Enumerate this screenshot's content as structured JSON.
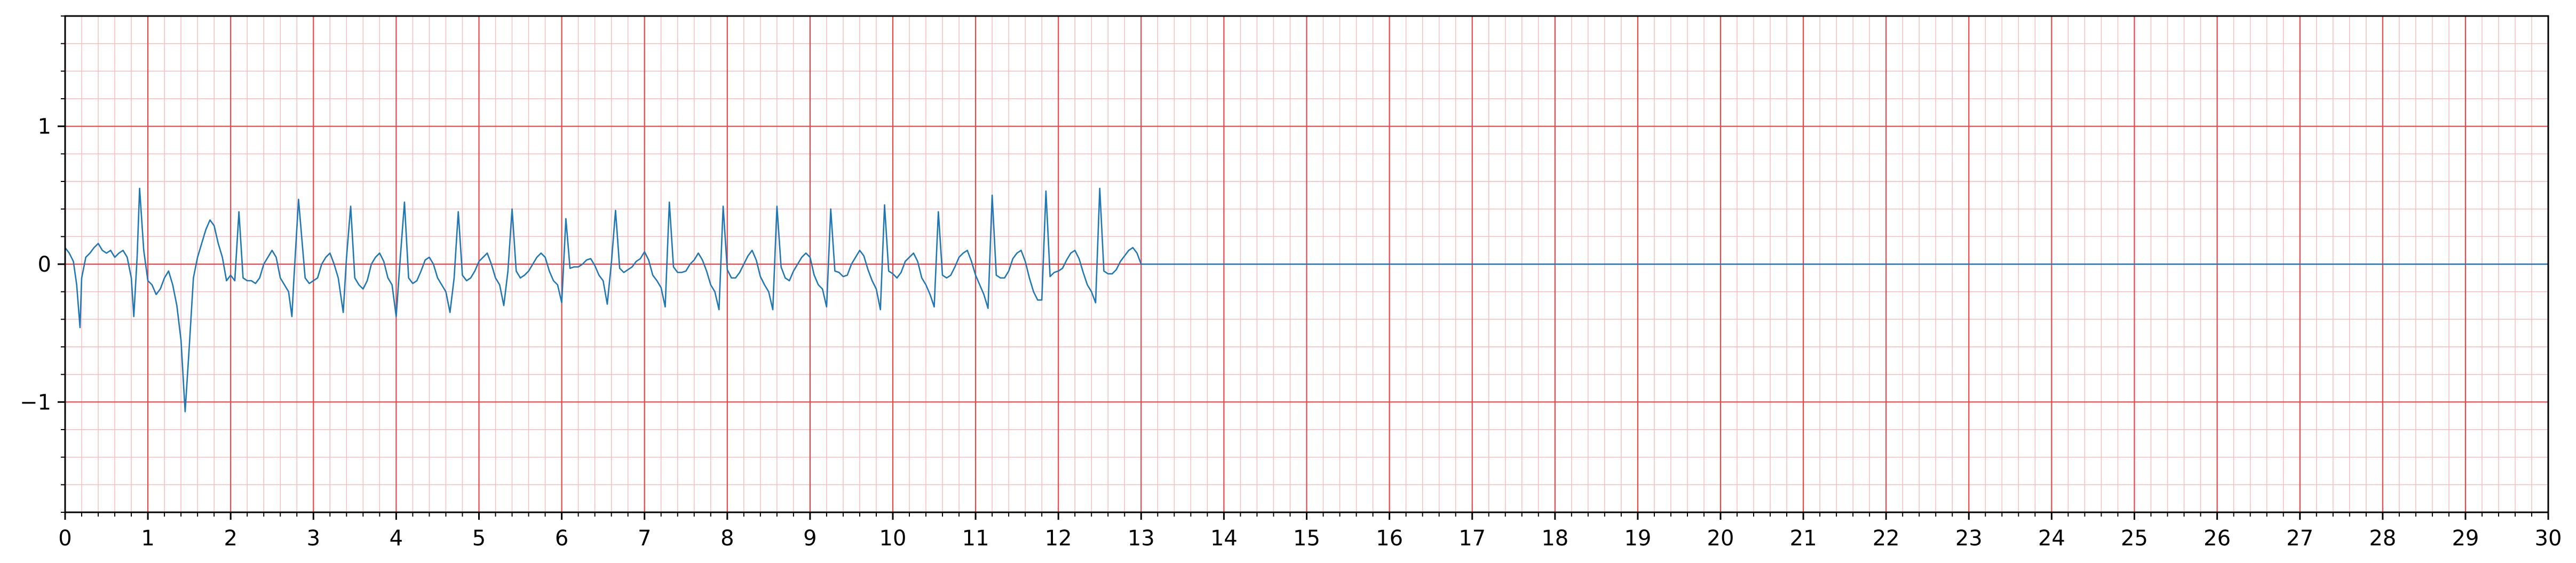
{
  "chart_data": {
    "type": "line",
    "title": "",
    "xlabel": "",
    "ylabel": "",
    "xlim": [
      0,
      30
    ],
    "ylim": [
      -1.8,
      1.8
    ],
    "x_ticks": [
      0,
      1,
      2,
      3,
      4,
      5,
      6,
      7,
      8,
      9,
      10,
      11,
      12,
      13,
      14,
      15,
      16,
      17,
      18,
      19,
      20,
      21,
      22,
      23,
      24,
      25,
      26,
      27,
      28,
      29,
      30
    ],
    "x_tick_labels": [
      "0",
      "1",
      "2",
      "3",
      "4",
      "5",
      "6",
      "7",
      "8",
      "9",
      "10",
      "11",
      "12",
      "13",
      "14",
      "15",
      "16",
      "17",
      "18",
      "19",
      "20",
      "21",
      "22",
      "23",
      "24",
      "25",
      "26",
      "27",
      "28",
      "29",
      "30"
    ],
    "y_ticks": [
      -1,
      0,
      1
    ],
    "y_tick_labels": [
      "−1",
      "0",
      "1"
    ],
    "x_minor_step": 0.2,
    "y_minor_step": 0.2,
    "grid": true,
    "colors": {
      "series": "#1f77b4",
      "major_grid": "#e8474a",
      "minor_grid": "#f7b9b9"
    },
    "series": [
      {
        "x": [
          0,
          0.05,
          0.1,
          0.14,
          0.18,
          0.2,
          0.25,
          0.3,
          0.35,
          0.4,
          0.45,
          0.5,
          0.55,
          0.6,
          0.65,
          0.7,
          0.75,
          0.8,
          0.83,
          0.87,
          0.9,
          0.95,
          1.0,
          1.05,
          1.1,
          1.15,
          1.2,
          1.25,
          1.3,
          1.35,
          1.4,
          1.45,
          1.5,
          1.55,
          1.6,
          1.65,
          1.7,
          1.75,
          1.8,
          1.85,
          1.9,
          1.95,
          2.0,
          2.05,
          2.1,
          2.15,
          2.2,
          2.25,
          2.3,
          2.35,
          2.4,
          2.45,
          2.5,
          2.55,
          2.6,
          2.65,
          2.7,
          2.74,
          2.76,
          2.82,
          2.9,
          2.95,
          3.0,
          3.05,
          3.1,
          3.15,
          3.2,
          3.25,
          3.3,
          3.36,
          3.4,
          3.45,
          3.5,
          3.55,
          3.6,
          3.65,
          3.7,
          3.75,
          3.8,
          3.85,
          3.9,
          3.95,
          4.0,
          4.05,
          4.1,
          4.15,
          4.2,
          4.25,
          4.3,
          4.35,
          4.4,
          4.45,
          4.5,
          4.55,
          4.6,
          4.65,
          4.7,
          4.75,
          4.8,
          4.85,
          4.9,
          4.95,
          5.0,
          5.05,
          5.1,
          5.15,
          5.2,
          5.25,
          5.3,
          5.35,
          5.4,
          5.45,
          5.5,
          5.55,
          5.6,
          5.65,
          5.7,
          5.75,
          5.8,
          5.85,
          5.9,
          5.95,
          6.0,
          6.05,
          6.1,
          6.15,
          6.2,
          6.25,
          6.3,
          6.35,
          6.4,
          6.45,
          6.5,
          6.55,
          6.6,
          6.65,
          6.7,
          6.75,
          6.8,
          6.85,
          6.9,
          6.95,
          7.0,
          7.05,
          7.1,
          7.15,
          7.2,
          7.25,
          7.3,
          7.35,
          7.4,
          7.45,
          7.5,
          7.55,
          7.6,
          7.65,
          7.7,
          7.75,
          7.8,
          7.85,
          7.9,
          7.95,
          8.0,
          8.05,
          8.1,
          8.15,
          8.2,
          8.25,
          8.3,
          8.35,
          8.4,
          8.45,
          8.5,
          8.55,
          8.6,
          8.65,
          8.7,
          8.75,
          8.8,
          8.85,
          8.9,
          8.95,
          9.0,
          9.05,
          9.1,
          9.15,
          9.2,
          9.25,
          9.3,
          9.35,
          9.4,
          9.45,
          9.5,
          9.55,
          9.6,
          9.65,
          9.7,
          9.75,
          9.8,
          9.85,
          9.9,
          9.95,
          10.0,
          10.05,
          10.1,
          10.15,
          10.2,
          10.25,
          10.3,
          10.35,
          10.4,
          10.45,
          10.5,
          10.55,
          10.6,
          10.65,
          10.7,
          10.75,
          10.8,
          10.85,
          10.9,
          10.95,
          11.0,
          11.05,
          11.1,
          11.15,
          11.2,
          11.25,
          11.3,
          11.35,
          11.4,
          11.45,
          11.5,
          11.55,
          11.6,
          11.65,
          11.7,
          11.75,
          11.8,
          11.85,
          11.9,
          11.95,
          12.0,
          12.05,
          12.1,
          12.15,
          12.2,
          12.25,
          12.3,
          12.35,
          12.4,
          12.45,
          12.5,
          12.55,
          12.6,
          12.65,
          12.7,
          12.75,
          12.8,
          12.85,
          12.9,
          12.95,
          13.0,
          30.0
        ],
        "y": [
          0.12,
          0.08,
          0.02,
          -0.15,
          -0.46,
          -0.1,
          0.05,
          0.08,
          0.12,
          0.15,
          0.1,
          0.08,
          0.1,
          0.05,
          0.08,
          0.1,
          0.05,
          -0.1,
          -0.38,
          0.05,
          0.55,
          0.1,
          -0.12,
          -0.15,
          -0.22,
          -0.18,
          -0.1,
          -0.05,
          -0.15,
          -0.3,
          -0.55,
          -1.07,
          -0.6,
          -0.1,
          0.05,
          0.15,
          0.25,
          0.32,
          0.28,
          0.15,
          0.05,
          -0.12,
          -0.08,
          -0.12,
          0.38,
          -0.1,
          -0.12,
          -0.12,
          -0.14,
          -0.1,
          0.0,
          0.05,
          0.1,
          0.05,
          -0.1,
          -0.15,
          -0.2,
          -0.38,
          -0.15,
          0.47,
          -0.1,
          -0.14,
          -0.12,
          -0.1,
          0.0,
          0.05,
          0.08,
          0.0,
          -0.1,
          -0.35,
          0.05,
          0.42,
          -0.1,
          -0.15,
          -0.18,
          -0.12,
          0.0,
          0.05,
          0.08,
          0.02,
          -0.1,
          -0.15,
          -0.38,
          0.05,
          0.45,
          -0.1,
          -0.14,
          -0.12,
          -0.05,
          0.03,
          0.05,
          0.0,
          -0.1,
          -0.15,
          -0.2,
          -0.35,
          -0.1,
          0.38,
          -0.08,
          -0.12,
          -0.1,
          -0.05,
          0.02,
          0.05,
          0.08,
          0.0,
          -0.1,
          -0.15,
          -0.3,
          -0.05,
          0.4,
          -0.05,
          -0.1,
          -0.08,
          -0.05,
          0.0,
          0.05,
          0.08,
          0.05,
          -0.05,
          -0.12,
          -0.15,
          -0.28,
          0.33,
          -0.03,
          -0.02,
          -0.02,
          0.0,
          0.03,
          0.04,
          -0.01,
          -0.08,
          -0.12,
          -0.29,
          0.01,
          0.39,
          -0.03,
          -0.06,
          -0.04,
          -0.02,
          0.02,
          0.04,
          0.09,
          0.03,
          -0.08,
          -0.12,
          -0.17,
          -0.31,
          0.45,
          -0.02,
          -0.06,
          -0.06,
          -0.05,
          0.0,
          0.03,
          0.08,
          0.03,
          -0.05,
          -0.15,
          -0.2,
          -0.33,
          0.42,
          -0.04,
          -0.1,
          -0.1,
          -0.06,
          0.0,
          0.06,
          0.1,
          0.03,
          -0.09,
          -0.15,
          -0.2,
          -0.33,
          0.42,
          -0.02,
          -0.1,
          -0.12,
          -0.05,
          0.0,
          0.05,
          0.08,
          0.05,
          -0.08,
          -0.15,
          -0.18,
          -0.31,
          0.4,
          -0.05,
          -0.06,
          -0.09,
          -0.08,
          0.0,
          0.05,
          0.1,
          0.06,
          -0.04,
          -0.12,
          -0.18,
          -0.33,
          0.43,
          -0.05,
          -0.07,
          -0.1,
          -0.06,
          0.02,
          0.05,
          0.08,
          0.02,
          -0.1,
          -0.15,
          -0.22,
          -0.31,
          0.38,
          -0.08,
          -0.1,
          -0.08,
          -0.02,
          0.05,
          0.08,
          0.1,
          0.02,
          -0.08,
          -0.15,
          -0.22,
          -0.32,
          0.5,
          -0.08,
          -0.1,
          -0.1,
          -0.05,
          0.04,
          0.08,
          0.1,
          0.02,
          -0.1,
          -0.2,
          -0.26,
          -0.26,
          0.53,
          -0.09,
          -0.06,
          -0.05,
          -0.03,
          0.03,
          0.08,
          0.1,
          0.04,
          -0.06,
          -0.15,
          -0.2,
          -0.28,
          0.55,
          -0.05,
          -0.07,
          -0.07,
          -0.04,
          0.02,
          0.06,
          0.1,
          0.12,
          0.08,
          0.0,
          0.0
        ]
      }
    ]
  }
}
